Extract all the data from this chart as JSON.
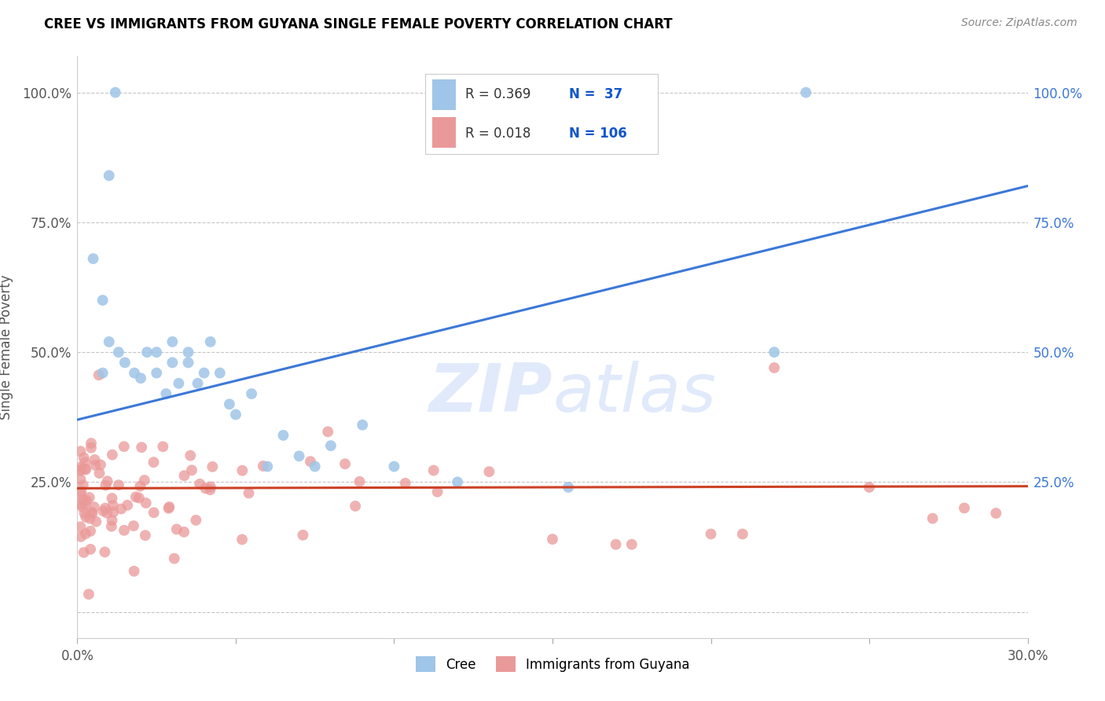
{
  "title": "CREE VS IMMIGRANTS FROM GUYANA SINGLE FEMALE POVERTY CORRELATION CHART",
  "source": "Source: ZipAtlas.com",
  "ylabel": "Single Female Poverty",
  "xlim": [
    0.0,
    0.3
  ],
  "ylim": [
    -0.05,
    1.07
  ],
  "yticks": [
    0.0,
    0.25,
    0.5,
    0.75,
    1.0
  ],
  "ytick_labels_left": [
    "",
    "25.0%",
    "50.0%",
    "75.0%",
    "100.0%"
  ],
  "ytick_labels_right": [
    "",
    "25.0%",
    "50.0%",
    "75.0%",
    "100.0%"
  ],
  "xticks": [
    0.0,
    0.05,
    0.1,
    0.15,
    0.2,
    0.25,
    0.3
  ],
  "xtick_labels": [
    "0.0%",
    "",
    "",
    "",
    "",
    "",
    "30.0%"
  ],
  "watermark_text": "ZIPatlas",
  "legend_r1": "R = 0.369",
  "legend_n1": "N =  37",
  "legend_r2": "R = 0.018",
  "legend_n2": "N = 106",
  "blue_dot_color": "#9fc5e8",
  "pink_dot_color": "#ea9999",
  "line_blue_color": "#3c78d8",
  "line_pink_color": "#cc4125",
  "blue_line_x0": 0.0,
  "blue_line_y0": 0.37,
  "blue_line_x1": 0.3,
  "blue_line_y1": 0.82,
  "pink_line_x0": 0.0,
  "pink_line_y0": 0.238,
  "pink_line_x1": 0.3,
  "pink_line_y1": 0.242,
  "background_color": "#ffffff",
  "grid_color": "#c0c0c0",
  "legend_text_color": "#333333",
  "legend_n_color": "#1155cc",
  "right_axis_color": "#3c78d8",
  "title_color": "#000000",
  "source_color": "#888888",
  "ylabel_color": "#555555"
}
